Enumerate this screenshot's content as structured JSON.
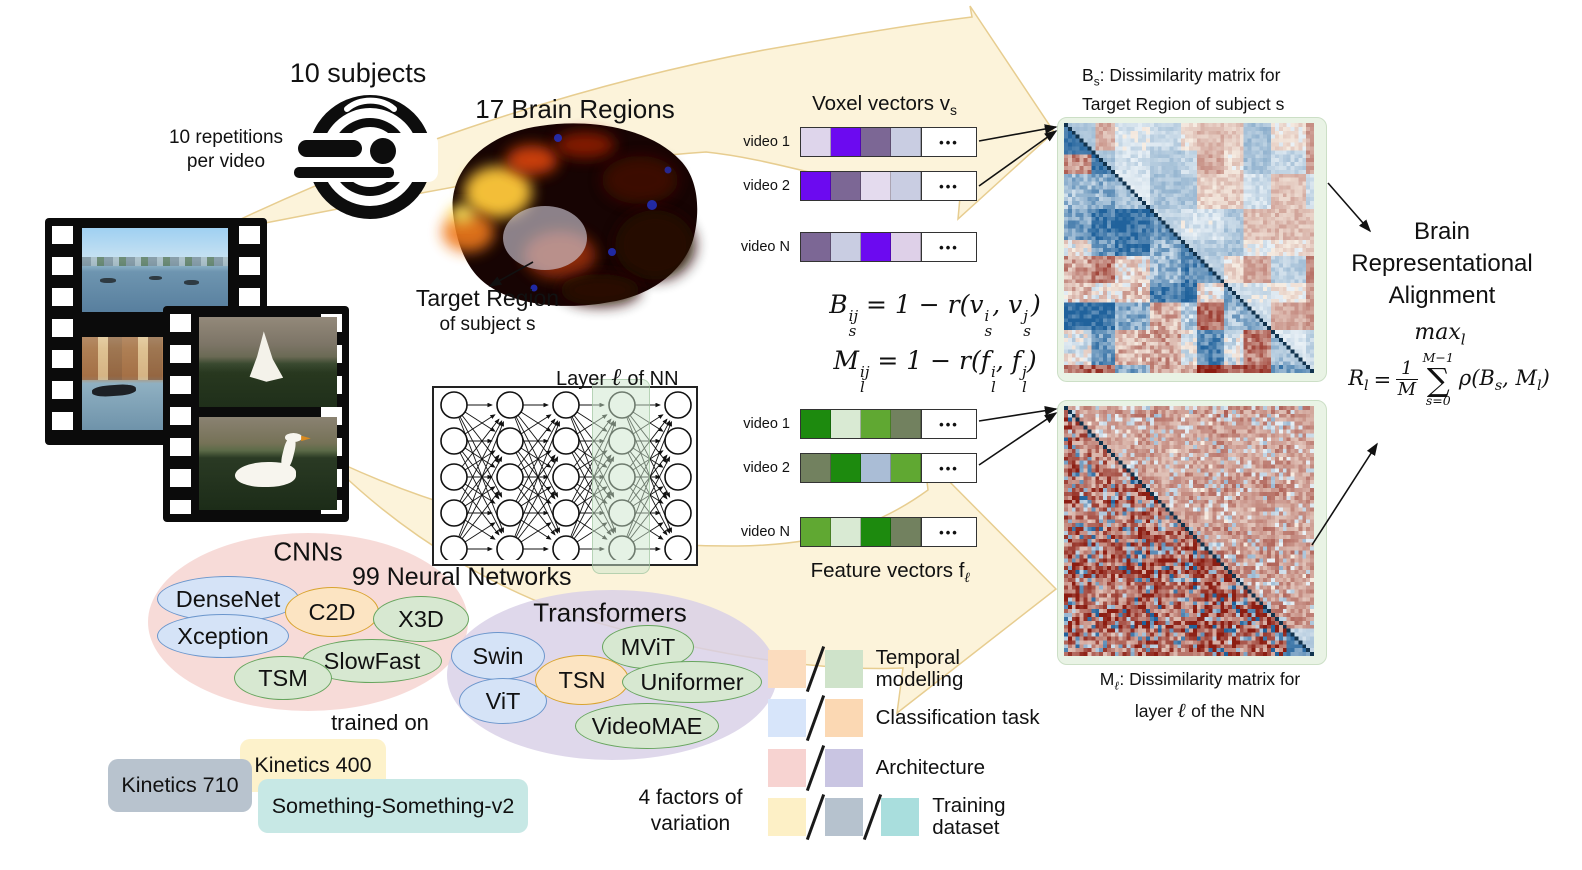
{
  "figure": {
    "subjects_title": "10 subjects",
    "repetitions": "10 repetitions\nper video",
    "brain_regions_title": "17 Brain Regions",
    "target_region": "Target Region",
    "target_region_sub": "of subject s",
    "neural_networks_count": "99 Neural Networks",
    "trained_on": "trained on",
    "factors_title": "4 factors of\nvariation",
    "alignment_title": "Brain\nRepresentational\nAlignment"
  },
  "videos": {
    "v1": "video 1",
    "v2": "video 2",
    "vn": "video N"
  },
  "dots": "•••",
  "voxel": {
    "title_pre": "Voxel vectors v",
    "title_sub": "s",
    "rows": [
      {
        "label": "video 1",
        "cells": [
          "#ded5eb",
          "#6c0af0",
          "#7c6795",
          "#c9cde2"
        ]
      },
      {
        "label": "video 2",
        "cells": [
          "#6c0af0",
          "#7c6795",
          "#e4dbee",
          "#c9cde2"
        ]
      },
      {
        "label": "video N",
        "cells": [
          "#7c6795",
          "#c9cde2",
          "#6c0af0",
          "#ded0e8"
        ]
      }
    ]
  },
  "features": {
    "title_pre": "Feature vectors f",
    "title_sub": "ℓ",
    "rows": [
      {
        "label": "video 1",
        "cells": [
          "#1d8a0e",
          "#d9ead3",
          "#60a832",
          "#72815f"
        ]
      },
      {
        "label": "video 2",
        "cells": [
          "#72815f",
          "#1d8a0e",
          "#aabdd6",
          "#60a832"
        ]
      },
      {
        "label": "video N",
        "cells": [
          "#60a832",
          "#d9ead3",
          "#1d8a0e",
          "#72815f"
        ]
      }
    ]
  },
  "formulas": {
    "b": {
      "sym": "B",
      "sup": "ij",
      "sub": "s",
      "mid": " = 1 − r(",
      "a_sym": "v",
      "a_sup": "i",
      "a_sub": "s",
      "comma": ", ",
      "b_sym": "v",
      "b_sup": "j",
      "b_sub": "s",
      "close": ")"
    },
    "m": {
      "sym": "M",
      "sup": "ij",
      "sub": "l",
      "mid": " = 1 − r(",
      "a_sym": "f",
      "a_sup": "i",
      "a_sub": "l",
      "comma": ", ",
      "b_sym": "f",
      "b_sup": "j",
      "b_sub": "l",
      "close": ")"
    },
    "max": {
      "base": "max",
      "sub": "l"
    },
    "r": {
      "lhs": "R",
      "lhs_sub": "l",
      "eq": "=",
      "num": "1",
      "den": "M",
      "sum_top": "M−1",
      "sigma": "∑",
      "sum_bot": "s=0",
      "rhs_pre": "ρ(B",
      "rhs_sub1": "s",
      "rhs_mid": ", M",
      "rhs_sub2": "l",
      "rhs_close": ")"
    }
  },
  "nn_box": {
    "layer_pre": "Layer ",
    "layer_l": "ℓ",
    "layer_post": " of NN"
  },
  "matrix_b": {
    "sym": "B",
    "sub": "s",
    "rest": ": Dissimilarity matrix for",
    "line2": "Target Region of subject s"
  },
  "matrix_m": {
    "sym": "M",
    "sub": "ℓ",
    "rest": ": Dissimilarity matrix for",
    "line2_pre": "layer ",
    "line2_l": "ℓ",
    "line2_post": " of the NN"
  },
  "networks": {
    "cnns": {
      "label": "CNNs",
      "fill": "#f5d3d0",
      "models": [
        {
          "name": "DenseNet",
          "fill": "#d5e3f7",
          "stroke": "#6b96cc"
        },
        {
          "name": "Xception",
          "fill": "#d5e3f7",
          "stroke": "#6b96cc"
        },
        {
          "name": "C2D",
          "fill": "#fce4c2",
          "stroke": "#d9a42f"
        },
        {
          "name": "X3D",
          "fill": "#d7e8d1",
          "stroke": "#67a55e"
        },
        {
          "name": "SlowFast",
          "fill": "#d7e8d1",
          "stroke": "#67a55e"
        },
        {
          "name": "TSM",
          "fill": "#d7e8d1",
          "stroke": "#67a55e"
        }
      ]
    },
    "transformers": {
      "label": "Transformers",
      "fill": "#d8d0e6",
      "models": [
        {
          "name": "Swin",
          "fill": "#d5e3f7",
          "stroke": "#6b96cc"
        },
        {
          "name": "ViT",
          "fill": "#d5e3f7",
          "stroke": "#6b96cc"
        },
        {
          "name": "TSN",
          "fill": "#fce4c2",
          "stroke": "#d9a42f"
        },
        {
          "name": "MViT",
          "fill": "#d7e8d1",
          "stroke": "#67a55e"
        },
        {
          "name": "Uniformer",
          "fill": "#d7e8d1",
          "stroke": "#67a55e"
        },
        {
          "name": "VideoMAE",
          "fill": "#d7e8d1",
          "stroke": "#67a55e"
        }
      ]
    }
  },
  "datasets": [
    {
      "name": "Kinetics 710",
      "fill": "#b8c3ce"
    },
    {
      "name": "Kinetics 400",
      "fill": "#fdf2cb"
    },
    {
      "name": "Something-Something-v2",
      "fill": "#c7e8e5"
    }
  ],
  "legend": {
    "rows": [
      {
        "label": "Temporal modelling",
        "swatches": [
          "#fbdcbe",
          "#cfe3ca"
        ]
      },
      {
        "label": "Classification task",
        "swatches": [
          "#d7e5fa",
          "#fbd8b3"
        ]
      },
      {
        "label": "Architecture",
        "swatches": [
          "#f7d3d1",
          "#c9c5e2"
        ]
      },
      {
        "label": "Training dataset",
        "swatches": [
          "#fdf0c6",
          "#b6c2ce",
          "#a9dedd"
        ]
      }
    ]
  },
  "flow_arrow": {
    "fill": "#fcf3da",
    "stroke": "#e7cd90"
  }
}
